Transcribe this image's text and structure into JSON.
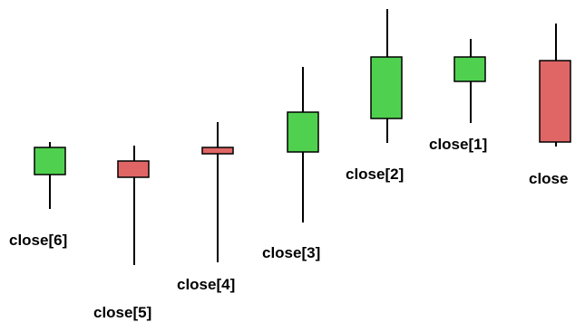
{
  "colors": {
    "bull": "#4fd14f",
    "bear": "#e06666",
    "outline": "#000000",
    "background": "#ffffff"
  },
  "candles": [
    {
      "label": "close[6]",
      "direction": "up"
    },
    {
      "label": "close[5]",
      "direction": "down"
    },
    {
      "label": "close[4]",
      "direction": "down"
    },
    {
      "label": "close[3]",
      "direction": "up"
    },
    {
      "label": "close[2]",
      "direction": "up"
    },
    {
      "label": "close[1]",
      "direction": "up"
    },
    {
      "label": "close",
      "direction": "down"
    }
  ]
}
